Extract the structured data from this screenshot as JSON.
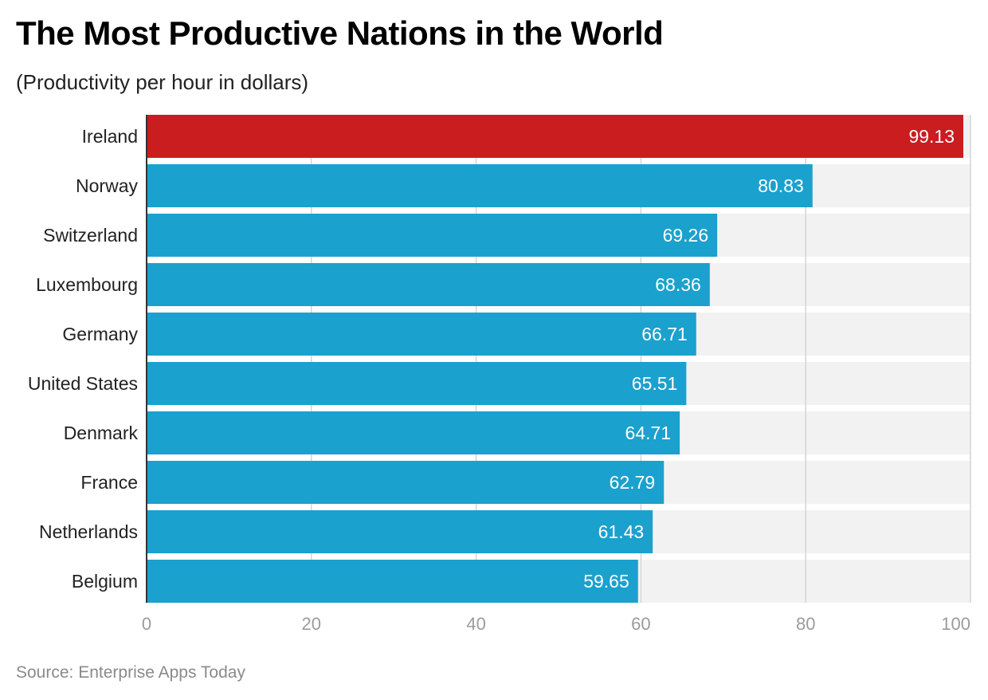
{
  "header": {
    "title": "The Most Productive Nations in the World",
    "subtitle": "(Productivity per hour in dollars)"
  },
  "footer": {
    "source": "Source: Enterprise Apps Today"
  },
  "colors": {
    "highlight": "#c91d1f",
    "bar": "#1ba1cd",
    "track": "#f2f2f2",
    "grid": "#d4d4d4",
    "tick_label": "#9b9b9b"
  },
  "chart_data": {
    "type": "bar",
    "orientation": "horizontal",
    "categories": [
      "Ireland",
      "Norway",
      "Switzerland",
      "Luxembourg",
      "Germany",
      "United States",
      "Denmark",
      "France",
      "Netherlands",
      "Belgium"
    ],
    "values": [
      99.13,
      80.83,
      69.26,
      68.36,
      66.71,
      65.51,
      64.71,
      62.79,
      61.43,
      59.65
    ],
    "value_labels": [
      "99.13",
      "80.83",
      "69.26",
      "68.36",
      "66.71",
      "65.51",
      "64.71",
      "62.79",
      "61.43",
      "59.65"
    ],
    "highlighted_category": "Ireland",
    "xlim": [
      0,
      100
    ],
    "xticks": [
      0,
      20,
      40,
      60,
      80,
      100
    ],
    "grid": true
  }
}
